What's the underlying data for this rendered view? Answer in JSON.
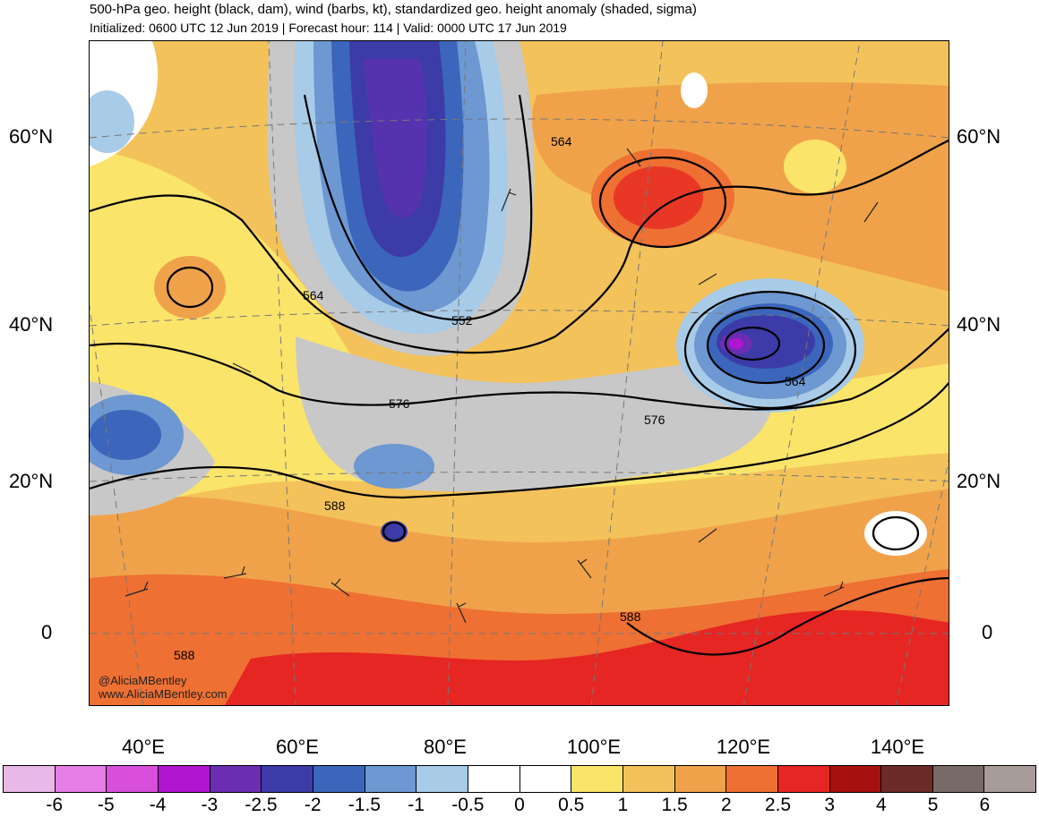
{
  "header": {
    "title": "500-hPa geo. height (black, dam), wind (barbs, kt), standardized geo. height anomaly (shaded, sigma)",
    "subtitle": "Initialized: 0600 UTC 12 Jun 2019 | Forecast hour: 114 | Valid: 0000 UTC 17 Jun 2019"
  },
  "axes": {
    "lat_left": [
      "60°N",
      "40°N",
      "20°N",
      "0"
    ],
    "lat_right": [
      "60°N",
      "40°N",
      "20°N",
      "0"
    ],
    "lon_bottom": [
      "40°E",
      "60°E",
      "80°E",
      "100°E",
      "120°E",
      "140°E"
    ]
  },
  "contour_labels": [
    "564",
    "564",
    "552",
    "576",
    "576",
    "564",
    "588",
    "588",
    "588"
  ],
  "credit": {
    "handle": "@AliciaMBentley",
    "website": "www.AliciaMBentley.com"
  },
  "colorbar": {
    "colors": [
      "#e8b8e6",
      "#e77de6",
      "#d84fdb",
      "#b115cf",
      "#6b2eb3",
      "#3d3ba8",
      "#3b66bb",
      "#6d98d1",
      "#a8cbe8",
      "#ffffff",
      "#ffffff",
      "#fbe46a",
      "#f3c25a",
      "#f0a24a",
      "#ee7033",
      "#e62622",
      "#a80f0f",
      "#6e2a28",
      "#786a66",
      "#a89c9a"
    ],
    "ticks": [
      "-6",
      "-5",
      "-4",
      "-3",
      "-2.5",
      "-2",
      "-1.5",
      "-1",
      "-0.5",
      "0",
      "0.5",
      "1",
      "1.5",
      "2",
      "2.5",
      "3",
      "4",
      "5",
      "6"
    ]
  }
}
